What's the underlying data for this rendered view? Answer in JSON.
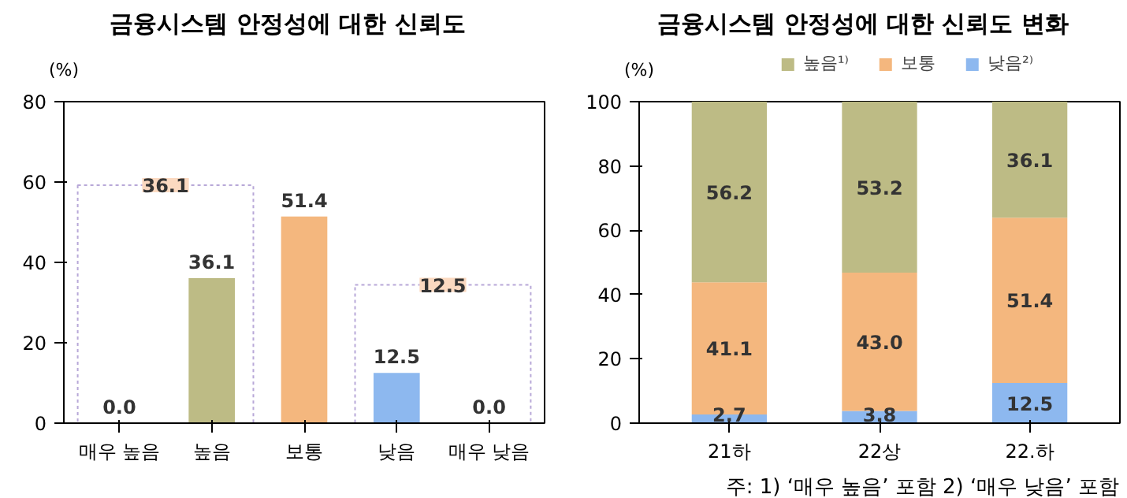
{
  "chart_data": [
    {
      "type": "bar",
      "title": "금융시스템 안정성에 대한 신뢰도",
      "ylabel": "(%)",
      "categories": [
        "매우 높음",
        "높음",
        "보통",
        "낮음",
        "매우 낮음"
      ],
      "values": [
        0,
        36.1,
        51.4,
        12.5,
        0
      ],
      "value_labels": [
        "0.0",
        "36.1",
        "51.4",
        "12.5",
        "0.0"
      ],
      "colors": [
        "#bdbb85",
        "#bdbb85",
        "#f4b77e",
        "#8db8ef",
        "#8db8ef"
      ],
      "ylim": [
        0,
        80
      ],
      "yticks": [
        0,
        20,
        40,
        60,
        80
      ],
      "grid": false,
      "legend": false,
      "annotations": [
        "36.1",
        "12.5"
      ]
    },
    {
      "type": "bar",
      "stacked": true,
      "title": "금융시스템 안정성에 대한 신뢰도 변화",
      "ylabel": "(%)",
      "categories": [
        "21하",
        "22상",
        "22.하"
      ],
      "series": [
        {
          "name": "낮음²⁾",
          "color": "#8db8ef",
          "values": [
            2.7,
            3.8,
            12.5
          ],
          "value_labels": [
            "2.7",
            "3.8",
            "12.5"
          ]
        },
        {
          "name": "보통",
          "color": "#f4b77e",
          "values": [
            41.1,
            43,
            51.4
          ],
          "value_labels": [
            "41.1",
            "43.0",
            "51.4"
          ]
        },
        {
          "name": "높음¹⁾",
          "color": "#bdbb85",
          "values": [
            56.2,
            53.2,
            36.1
          ],
          "value_labels": [
            "56.2",
            "53.2",
            "36.1"
          ]
        }
      ],
      "ylim": [
        0,
        100
      ],
      "yticks": [
        0,
        20,
        40,
        60,
        80,
        100
      ],
      "grid": false,
      "legend": "top",
      "annotations": [
        "주: 1) ‘매우 높음’ 포함  2) ‘매우 낮음’ 포함"
      ]
    }
  ]
}
